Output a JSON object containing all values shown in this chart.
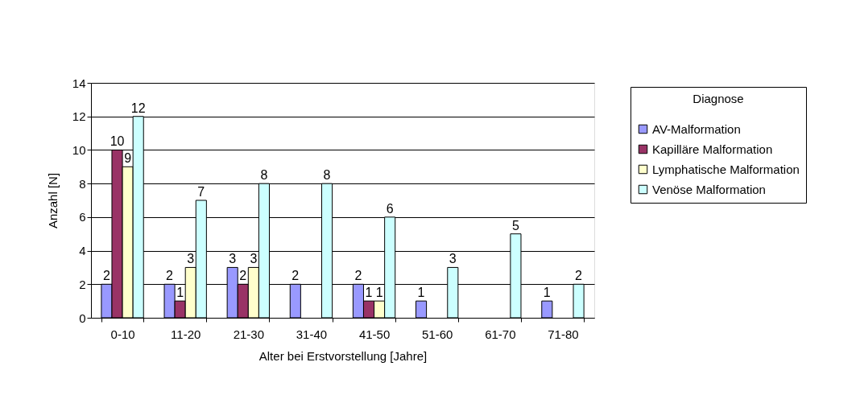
{
  "chart_data": {
    "type": "bar",
    "xlabel": "Alter bei Erstvorstellung [Jahre]",
    "ylabel": "Anzahl [N]",
    "legend_title": "Diagnose",
    "categories": [
      "0-10",
      "11-20",
      "21-30",
      "31-40",
      "41-50",
      "51-60",
      "61-70",
      "71-80"
    ],
    "series": [
      {
        "name": "AV-Malformation",
        "color": "#9999ff",
        "values": [
          2,
          2,
          3,
          2,
          2,
          1,
          null,
          1
        ]
      },
      {
        "name": "Kapilläre Malformation",
        "color": "#993366",
        "values": [
          10,
          1,
          2,
          null,
          1,
          null,
          null,
          null
        ]
      },
      {
        "name": "Lymphatische Malformation",
        "color": "#ffffcc",
        "values": [
          9,
          3,
          3,
          null,
          1,
          null,
          null,
          null
        ]
      },
      {
        "name": "Venöse Malformation",
        "color": "#ccffff",
        "values": [
          12,
          7,
          8,
          8,
          6,
          3,
          5,
          2
        ]
      }
    ],
    "ylim": [
      0,
      14
    ],
    "yticks": [
      0,
      2,
      4,
      6,
      8,
      10,
      12,
      14
    ],
    "grid": "y",
    "legend": "right",
    "data_labels": true
  }
}
